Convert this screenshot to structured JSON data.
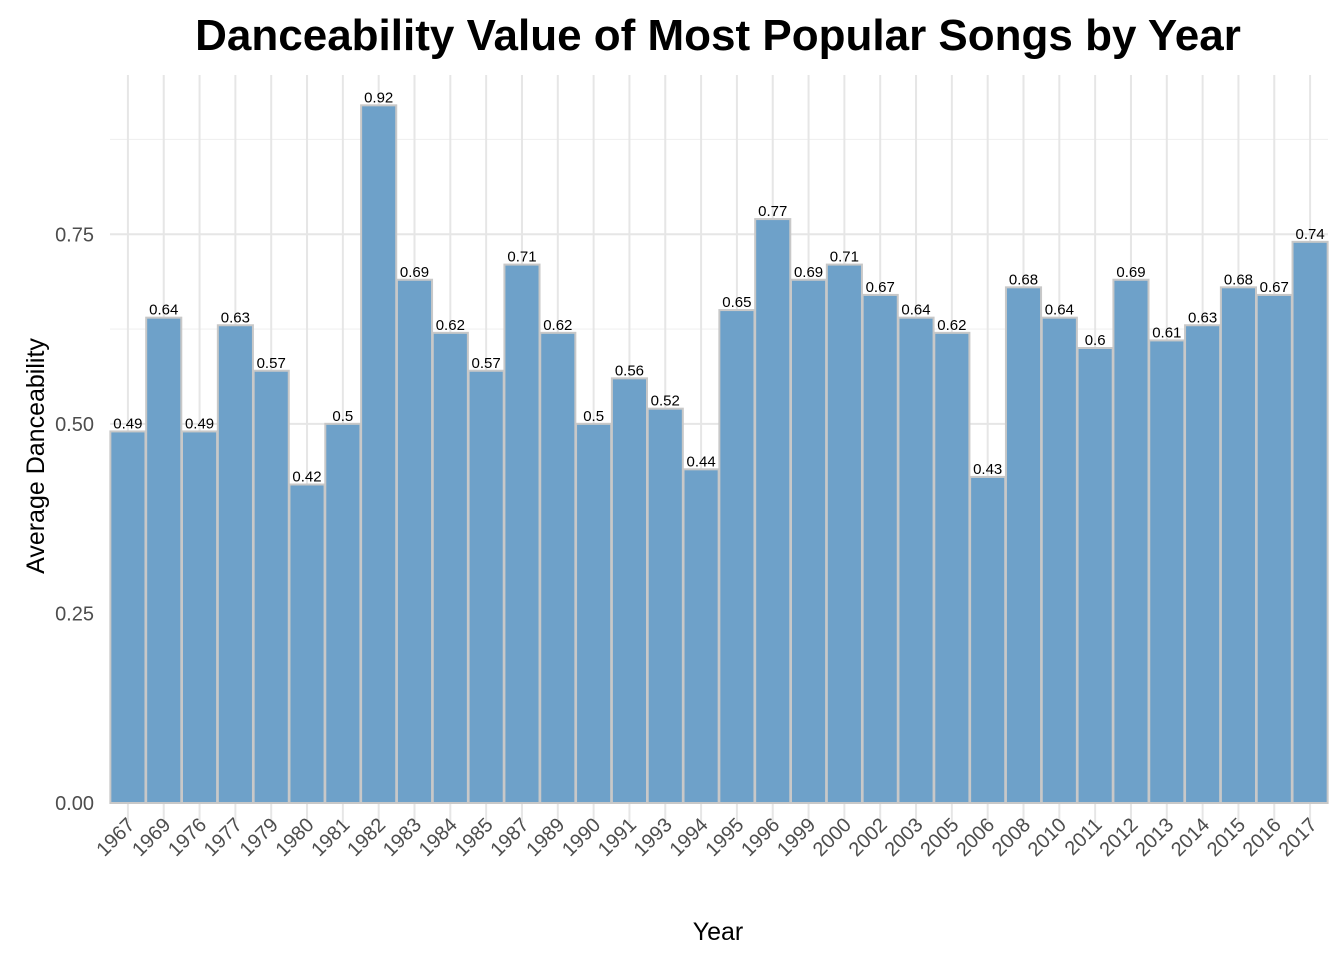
{
  "chart_data": {
    "type": "bar",
    "title": "Danceability Value of Most Popular Songs by Year",
    "xlabel": "Year",
    "ylabel": "Average Danceability",
    "categories": [
      "1967",
      "1969",
      "1976",
      "1977",
      "1979",
      "1980",
      "1981",
      "1982",
      "1983",
      "1984",
      "1985",
      "1987",
      "1989",
      "1990",
      "1991",
      "1993",
      "1994",
      "1995",
      "1996",
      "1999",
      "2000",
      "2002",
      "2003",
      "2005",
      "2006",
      "2008",
      "2010",
      "2011",
      "2012",
      "2013",
      "2014",
      "2015",
      "2016",
      "2017"
    ],
    "values": [
      0.49,
      0.64,
      0.49,
      0.63,
      0.57,
      0.42,
      0.5,
      0.92,
      0.69,
      0.62,
      0.57,
      0.71,
      0.62,
      0.5,
      0.56,
      0.52,
      0.44,
      0.65,
      0.77,
      0.69,
      0.71,
      0.67,
      0.64,
      0.62,
      0.43,
      0.68,
      0.64,
      0.6,
      0.69,
      0.61,
      0.63,
      0.68,
      0.67,
      0.74
    ],
    "data_labels": [
      "0.49",
      "0.64",
      "0.49",
      "0.63",
      "0.57",
      "0.42",
      "0.5",
      "0.92",
      "0.69",
      "0.62",
      "0.57",
      "0.71",
      "0.62",
      "0.5",
      "0.56",
      "0.52",
      "0.44",
      "0.65",
      "0.77",
      "0.69",
      "0.71",
      "0.67",
      "0.64",
      "0.62",
      "0.43",
      "0.68",
      "0.64",
      "0.6",
      "0.69",
      "0.61",
      "0.63",
      "0.68",
      "0.67",
      "0.74"
    ],
    "yticks": [
      0,
      0.25,
      0.5,
      0.75
    ],
    "ytick_labels": [
      "0.00",
      "0.25",
      "0.50",
      "0.75"
    ],
    "ylim": [
      0,
      0.96
    ],
    "grid": true,
    "legend": "none",
    "colors": {
      "bar_fill": "#6ea1c9",
      "bar_stroke": "#c8c8c8",
      "grid_major": "#e6e6e6",
      "grid_minor": "#f0f0f0"
    }
  }
}
